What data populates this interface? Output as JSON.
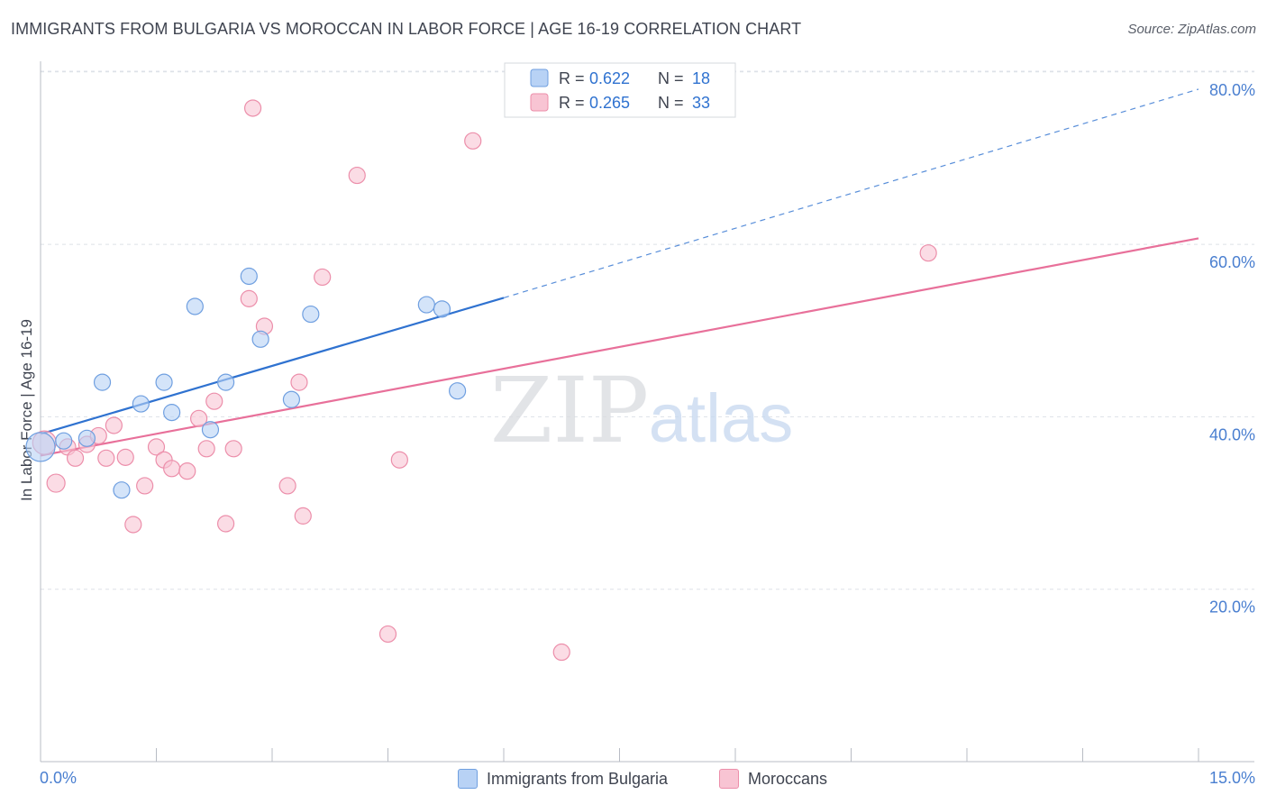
{
  "header": {
    "title": "IMMIGRANTS FROM BULGARIA VS MOROCCAN IN LABOR FORCE | AGE 16-19 CORRELATION CHART",
    "source": "Source: ZipAtlas.com"
  },
  "watermark": {
    "zip": "ZIP",
    "atlas": "atlas"
  },
  "colors": {
    "blue_fill": "#b8d2f5",
    "blue_stroke": "#6f9fe0",
    "blue_line": "#2f72d0",
    "pink_fill": "#f8c4d3",
    "pink_stroke": "#ec8eaa",
    "pink_line": "#e8709a",
    "tick_label": "#4a7fd0",
    "grid": "#dde1e8"
  },
  "legend_box": {
    "rows": [
      {
        "r_label": "R =",
        "r_value": "0.622",
        "n_label": "N =",
        "n_value": "18"
      },
      {
        "r_label": "R =",
        "r_value": "0.265",
        "n_label": "N =",
        "n_value": "33"
      }
    ]
  },
  "chart_data": {
    "type": "scatter",
    "title": "IMMIGRANTS FROM BULGARIA VS MOROCCAN IN LABOR FORCE | AGE 16-19 CORRELATION CHART",
    "xlabel": "",
    "ylabel": "In Labor Force | Age 16-19",
    "xlim": [
      0,
      15
    ],
    "ylim": [
      0,
      82
    ],
    "x_tick_labels": [
      "0.0%",
      "15.0%"
    ],
    "y_ticks": [
      20,
      40,
      60,
      80
    ],
    "y_tick_labels": [
      "20.0%",
      "40.0%",
      "60.0%",
      "80.0%"
    ],
    "grid": true,
    "legend_position": "bottom",
    "series": [
      {
        "name": "Immigrants from Bulgaria",
        "r": 0.622,
        "n": 18,
        "points": [
          [
            0.0,
            36.5,
            16
          ],
          [
            0.3,
            37.2,
            9
          ],
          [
            0.6,
            37.5,
            9
          ],
          [
            0.8,
            44.0,
            9
          ],
          [
            1.05,
            31.5,
            9
          ],
          [
            1.3,
            41.5,
            9
          ],
          [
            1.6,
            44.0,
            9
          ],
          [
            1.7,
            40.5,
            9
          ],
          [
            2.0,
            52.8,
            9
          ],
          [
            2.2,
            38.5,
            9
          ],
          [
            2.4,
            44.0,
            9
          ],
          [
            2.7,
            56.3,
            9
          ],
          [
            2.85,
            49.0,
            9
          ],
          [
            3.25,
            42.0,
            9
          ],
          [
            3.5,
            51.9,
            9
          ],
          [
            5.0,
            53.0,
            9
          ],
          [
            5.2,
            52.5,
            9
          ],
          [
            5.4,
            43.0,
            9
          ]
        ],
        "trend": {
          "x0": 0.0,
          "y0": 38.0,
          "x1": 6.0,
          "y1": 53.8,
          "dash_to_x": 15.0,
          "dash_to_y": 78.0
        }
      },
      {
        "name": "Moroccans",
        "r": 0.265,
        "n": 33,
        "points": [
          [
            0.05,
            37.0,
            13
          ],
          [
            0.2,
            32.3,
            10
          ],
          [
            0.35,
            36.5,
            9
          ],
          [
            0.45,
            35.2,
            9
          ],
          [
            0.6,
            36.8,
            9
          ],
          [
            0.75,
            37.8,
            9
          ],
          [
            0.85,
            35.2,
            9
          ],
          [
            0.95,
            39.0,
            9
          ],
          [
            1.1,
            35.3,
            9
          ],
          [
            1.2,
            27.5,
            9
          ],
          [
            1.35,
            32.0,
            9
          ],
          [
            1.5,
            36.5,
            9
          ],
          [
            1.6,
            35.0,
            9
          ],
          [
            1.7,
            34.0,
            9
          ],
          [
            1.9,
            33.7,
            9
          ],
          [
            2.05,
            39.8,
            9
          ],
          [
            2.15,
            36.3,
            9
          ],
          [
            2.25,
            41.8,
            9
          ],
          [
            2.4,
            27.6,
            9
          ],
          [
            2.5,
            36.3,
            9
          ],
          [
            2.7,
            53.7,
            9
          ],
          [
            2.75,
            75.8,
            9
          ],
          [
            2.9,
            50.5,
            9
          ],
          [
            3.2,
            32.0,
            9
          ],
          [
            3.35,
            44.0,
            9
          ],
          [
            3.4,
            28.5,
            9
          ],
          [
            3.65,
            56.2,
            9
          ],
          [
            4.1,
            68.0,
            9
          ],
          [
            4.5,
            14.8,
            9
          ],
          [
            4.65,
            35.0,
            9
          ],
          [
            5.6,
            72.0,
            9
          ],
          [
            6.75,
            12.7,
            9
          ],
          [
            11.5,
            59.0,
            9
          ]
        ],
        "trend": {
          "x0": 0.0,
          "y0": 35.5,
          "x1": 15.0,
          "y1": 60.7
        }
      }
    ]
  }
}
